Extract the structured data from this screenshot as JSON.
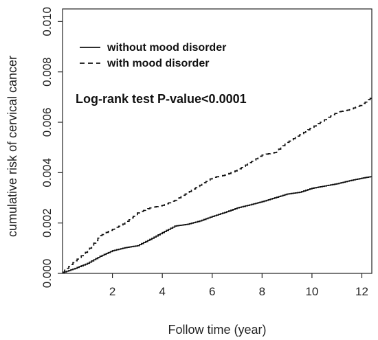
{
  "chart_data": {
    "type": "line",
    "title": "",
    "xlabel": "Follow time (year)",
    "ylabel": "cumulative risk of cervical cancer",
    "xlim": [
      0,
      12.4
    ],
    "ylim": [
      0,
      0.0105
    ],
    "x_ticks": [
      2,
      4,
      6,
      8,
      10,
      12
    ],
    "x_tick_labels": [
      "2",
      "4",
      "6",
      "8",
      "10",
      "12"
    ],
    "y_ticks": [
      0,
      0.002,
      0.004,
      0.006,
      0.008,
      0.01
    ],
    "y_tick_labels": [
      "0.000",
      "0.002",
      "0.004",
      "0.006",
      "0.008",
      "0.010"
    ],
    "grid": false,
    "legend_position": "top-left",
    "annotation": "Log-rank test P-value<0.0001",
    "series": [
      {
        "name": "without mood disorder",
        "style": "solid",
        "x": [
          0,
          0.5,
          1,
          1.5,
          2,
          2.5,
          3,
          3.5,
          4,
          4.5,
          5,
          5.5,
          6,
          6.5,
          7,
          7.5,
          8,
          8.5,
          9,
          9.5,
          10,
          10.5,
          11,
          11.5,
          12,
          12.4
        ],
        "y": [
          3e-05,
          0.0002,
          0.0004,
          0.00068,
          0.0009,
          0.00102,
          0.0011,
          0.00135,
          0.00162,
          0.00188,
          0.00195,
          0.00208,
          0.00226,
          0.00242,
          0.0026,
          0.00272,
          0.00285,
          0.003,
          0.00315,
          0.00322,
          0.00338,
          0.00347,
          0.00356,
          0.00368,
          0.00378,
          0.00385
        ]
      },
      {
        "name": "with mood disorder",
        "style": "dashed",
        "x": [
          0,
          0.5,
          1,
          1.5,
          2,
          2.5,
          3,
          3.5,
          4,
          4.5,
          5,
          5.5,
          6,
          6.5,
          7,
          7.5,
          8,
          8.5,
          9,
          9.5,
          10,
          10.5,
          11,
          11.5,
          12,
          12.4
        ],
        "y": [
          5e-05,
          0.0005,
          0.0009,
          0.0015,
          0.00175,
          0.002,
          0.0024,
          0.0026,
          0.0027,
          0.0029,
          0.0032,
          0.0035,
          0.0038,
          0.0039,
          0.0041,
          0.0044,
          0.0047,
          0.0048,
          0.0052,
          0.0055,
          0.0058,
          0.0061,
          0.0064,
          0.0065,
          0.0067,
          0.007
        ]
      }
    ]
  }
}
